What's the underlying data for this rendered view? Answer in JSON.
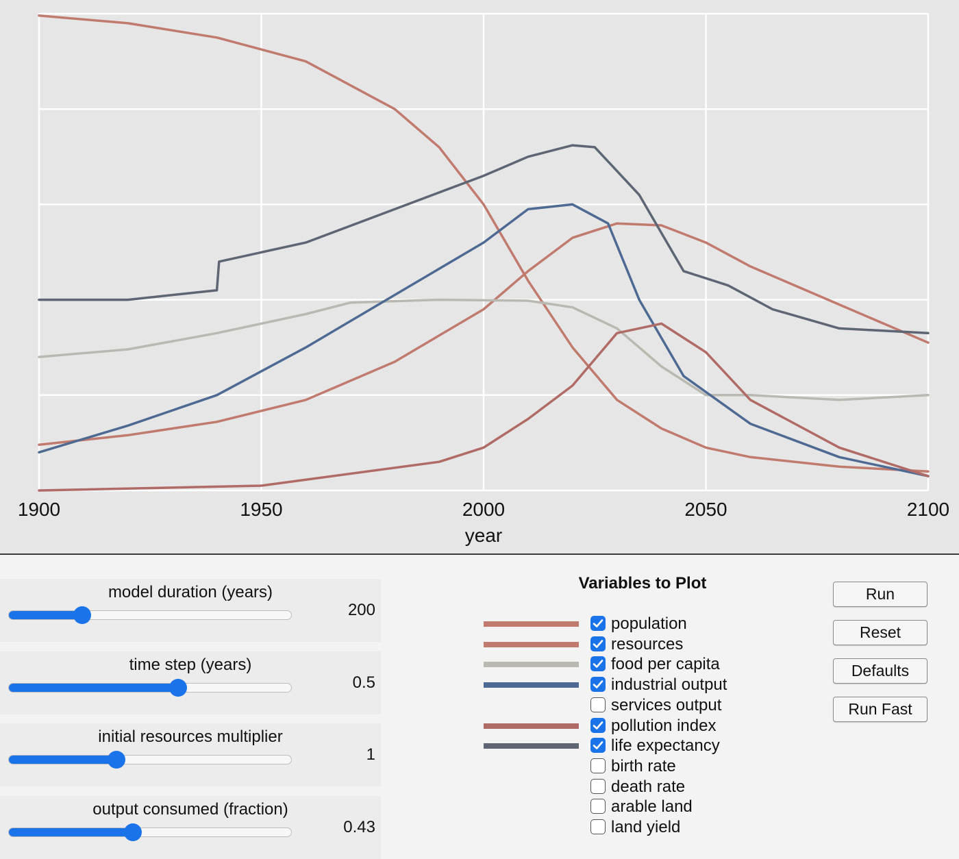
{
  "chart_data": {
    "type": "line",
    "xlabel": "year",
    "ylabel": "",
    "xlim": [
      1900,
      2100
    ],
    "ylim": [
      0,
      5
    ],
    "x_ticks": [
      1900,
      1950,
      2000,
      2050,
      2100
    ],
    "grid": true,
    "series": [
      {
        "id": "resources",
        "color": "#c07a6e",
        "points": [
          [
            1900,
            4.98
          ],
          [
            1920,
            4.9
          ],
          [
            1940,
            4.75
          ],
          [
            1960,
            4.5
          ],
          [
            1980,
            4.0
          ],
          [
            1990,
            3.6
          ],
          [
            2000,
            3.0
          ],
          [
            2010,
            2.2
          ],
          [
            2020,
            1.5
          ],
          [
            2030,
            0.95
          ],
          [
            2040,
            0.65
          ],
          [
            2050,
            0.45
          ],
          [
            2060,
            0.35
          ],
          [
            2080,
            0.25
          ],
          [
            2100,
            0.2
          ]
        ]
      },
      {
        "id": "population",
        "color": "#c07a6e",
        "points": [
          [
            1900,
            0.48
          ],
          [
            1920,
            0.58
          ],
          [
            1940,
            0.72
          ],
          [
            1960,
            0.95
          ],
          [
            1980,
            1.35
          ],
          [
            2000,
            1.9
          ],
          [
            2010,
            2.3
          ],
          [
            2020,
            2.65
          ],
          [
            2030,
            2.8
          ],
          [
            2040,
            2.78
          ],
          [
            2050,
            2.6
          ],
          [
            2060,
            2.35
          ],
          [
            2080,
            1.95
          ],
          [
            2100,
            1.55
          ]
        ]
      },
      {
        "id": "food per capita",
        "color": "#b9b9b2",
        "points": [
          [
            1900,
            1.4
          ],
          [
            1920,
            1.48
          ],
          [
            1940,
            1.65
          ],
          [
            1960,
            1.85
          ],
          [
            1970,
            1.97
          ],
          [
            1990,
            2.0
          ],
          [
            2010,
            1.99
          ],
          [
            2020,
            1.92
          ],
          [
            2030,
            1.7
          ],
          [
            2040,
            1.3
          ],
          [
            2050,
            1.0
          ],
          [
            2060,
            1.0
          ],
          [
            2080,
            0.95
          ],
          [
            2100,
            1.0
          ]
        ]
      },
      {
        "id": "industrial output",
        "color": "#4e6a93",
        "points": [
          [
            1900,
            0.4
          ],
          [
            1920,
            0.68
          ],
          [
            1940,
            1.0
          ],
          [
            1960,
            1.5
          ],
          [
            1980,
            2.05
          ],
          [
            2000,
            2.6
          ],
          [
            2010,
            2.95
          ],
          [
            2020,
            3.0
          ],
          [
            2028,
            2.8
          ],
          [
            2035,
            2.0
          ],
          [
            2045,
            1.2
          ],
          [
            2060,
            0.7
          ],
          [
            2080,
            0.35
          ],
          [
            2100,
            0.15
          ]
        ]
      },
      {
        "id": "pollution index",
        "color": "#b06b66",
        "points": [
          [
            1900,
            0.0
          ],
          [
            1950,
            0.05
          ],
          [
            1990,
            0.3
          ],
          [
            2000,
            0.45
          ],
          [
            2010,
            0.75
          ],
          [
            2020,
            1.1
          ],
          [
            2030,
            1.65
          ],
          [
            2040,
            1.75
          ],
          [
            2050,
            1.45
          ],
          [
            2060,
            0.95
          ],
          [
            2080,
            0.45
          ],
          [
            2100,
            0.15
          ]
        ]
      },
      {
        "id": "life expectancy",
        "color": "#5e6573",
        "points": [
          [
            1900,
            2.0
          ],
          [
            1920,
            2.0
          ],
          [
            1940,
            2.1
          ],
          [
            1940.5,
            2.4
          ],
          [
            1960,
            2.6
          ],
          [
            1980,
            2.95
          ],
          [
            2000,
            3.3
          ],
          [
            2010,
            3.5
          ],
          [
            2020,
            3.62
          ],
          [
            2025,
            3.6
          ],
          [
            2035,
            3.1
          ],
          [
            2045,
            2.3
          ],
          [
            2055,
            2.15
          ],
          [
            2065,
            1.9
          ],
          [
            2080,
            1.7
          ],
          [
            2100,
            1.65
          ]
        ]
      }
    ]
  },
  "sliders": [
    {
      "id": "duration",
      "label": "model duration (years)",
      "value": "200",
      "fill": 0.26
    },
    {
      "id": "timestep",
      "label": "time step (years)",
      "value": "0.5",
      "fill": 0.6
    },
    {
      "id": "resources-mult",
      "label": "initial resources multiplier",
      "value": "1",
      "fill": 0.38
    },
    {
      "id": "consumed",
      "label": "output consumed (fraction)",
      "value": "0.43",
      "fill": 0.44
    }
  ],
  "plot_title": "Variables to Plot",
  "variables": [
    {
      "label": "population",
      "checked": true,
      "color": "#c07a6e"
    },
    {
      "label": "resources",
      "checked": true,
      "color": "#c07a6e"
    },
    {
      "label": "food per capita",
      "checked": true,
      "color": "#b9b9b2"
    },
    {
      "label": "industrial output",
      "checked": true,
      "color": "#4e6a93"
    },
    {
      "label": "services output",
      "checked": false,
      "color": ""
    },
    {
      "label": "pollution index",
      "checked": true,
      "color": "#b06b66"
    },
    {
      "label": "life expectancy",
      "checked": true,
      "color": "#5e6573"
    },
    {
      "label": "birth rate",
      "checked": false,
      "color": ""
    },
    {
      "label": "death rate",
      "checked": false,
      "color": ""
    },
    {
      "label": "arable land",
      "checked": false,
      "color": ""
    },
    {
      "label": "land yield",
      "checked": false,
      "color": ""
    }
  ],
  "buttons": {
    "run": "Run",
    "reset": "Reset",
    "defaults": "Defaults",
    "run_fast": "Run Fast"
  }
}
